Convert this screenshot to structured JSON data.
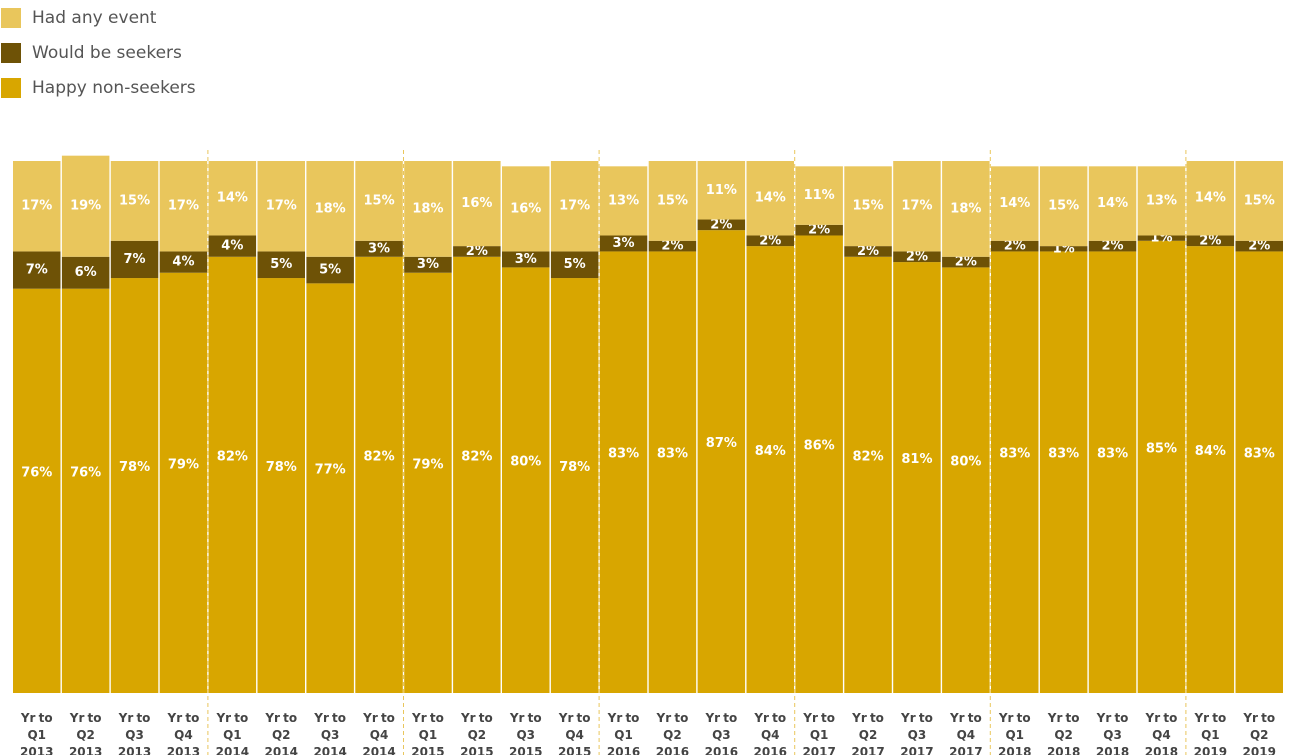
{
  "chart_data": {
    "type": "stacked_bar",
    "categories": [
      "Yr to Q1 2013",
      "Yr to Q2 2013",
      "Yr to Q3 2013",
      "Yr to Q4 2013",
      "Yr to Q1 2014",
      "Yr to Q2 2014",
      "Yr to Q3 2014",
      "Yr to Q4 2014",
      "Yr to Q1 2015",
      "Yr to Q2 2015",
      "Yr to Q3 2015",
      "Yr to Q4 2015",
      "Yr to Q1 2016",
      "Yr to Q2 2016",
      "Yr to Q3 2016",
      "Yr to Q4 2016",
      "Yr to Q1 2017",
      "Yr to Q2 2017",
      "Yr to Q3 2017",
      "Yr to Q4 2017",
      "Yr to Q1 2018",
      "Yr to Q2 2018",
      "Yr to Q3 2018",
      "Yr to Q4 2018",
      "Yr to Q1 2019",
      "Yr to Q2 2019"
    ],
    "series": [
      {
        "name": "Happy non-seekers",
        "color": "#d8a600",
        "values": [
          76,
          76,
          78,
          79,
          82,
          78,
          77,
          82,
          79,
          82,
          80,
          78,
          83,
          83,
          87,
          84,
          86,
          82,
          81,
          80,
          83,
          83,
          83,
          85,
          84,
          83
        ],
        "value_labels": [
          "76%",
          "76%",
          "78%",
          "79%",
          "82%",
          "78%",
          "77%",
          "82%",
          "79%",
          "82%",
          "80%",
          "78%",
          "83%",
          "83%",
          "87%",
          "84%",
          "86%",
          "82%",
          "81%",
          "80%",
          "83%",
          "83%",
          "83%",
          "85%",
          "84%",
          "83%"
        ]
      },
      {
        "name": "Would be seekers",
        "color": "#6e5206",
        "values": [
          7,
          6,
          7,
          4,
          4,
          5,
          5,
          3,
          3,
          2,
          3,
          5,
          3,
          2,
          2,
          2,
          2,
          2,
          2,
          2,
          2,
          1,
          2,
          1,
          2,
          2
        ],
        "value_labels": [
          "7%",
          "6%",
          "7%",
          "4%",
          "4%",
          "5%",
          "5%",
          "3%",
          "3%",
          "2%",
          "3%",
          "5%",
          "3%",
          "2%",
          "2%",
          "2%",
          "2%",
          "2%",
          "2%",
          "2%",
          "2%",
          "1%",
          "2%",
          "1%",
          "2%",
          "2%"
        ]
      },
      {
        "name": "Had any event",
        "color": "#e9c65c",
        "values": [
          17,
          19,
          15,
          17,
          14,
          17,
          18,
          15,
          18,
          16,
          16,
          17,
          13,
          15,
          11,
          14,
          11,
          15,
          17,
          18,
          14,
          15,
          14,
          13,
          14,
          15
        ],
        "value_labels": [
          "17%",
          "19%",
          "15%",
          "17%",
          "14%",
          "17%",
          "18%",
          "15%",
          "18%",
          "16%",
          "16%",
          "17%",
          "13%",
          "15%",
          "11%",
          "14%",
          "11%",
          "15%",
          "17%",
          "18%",
          "14%",
          "15%",
          "14%",
          "13%",
          "14%",
          "15%"
        ]
      }
    ],
    "legend": "top-left"
  }
}
